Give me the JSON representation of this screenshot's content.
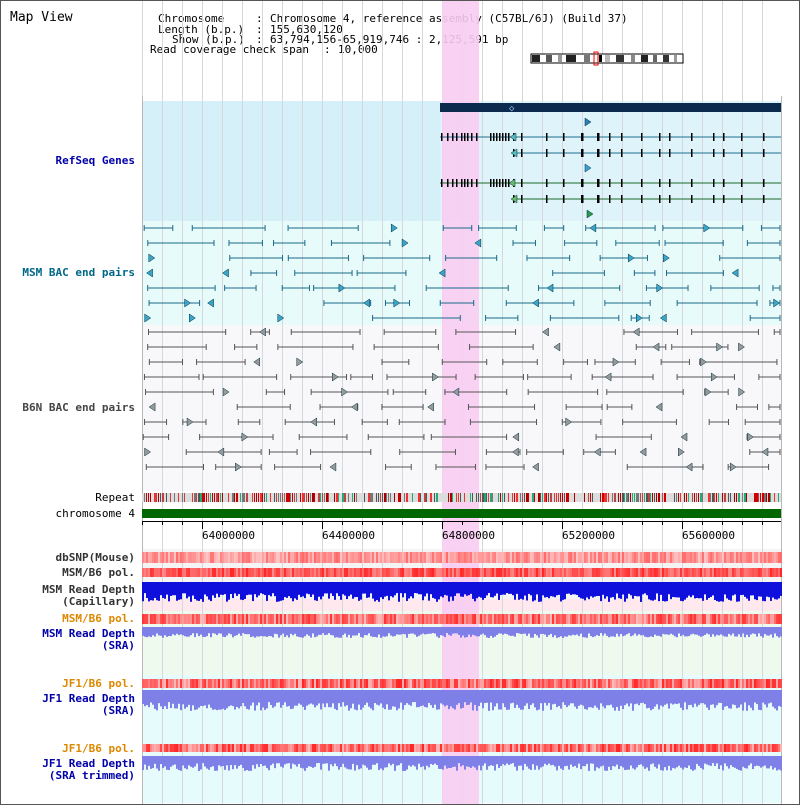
{
  "view_title": "Map View",
  "header": {
    "chromosome_key": "Chromosome",
    "chromosome_value": "Chromosome 4, reference assembly (C57BL/6J) (Build 37)",
    "length_key": "Length (b.p.)",
    "length_value": "155,630,120",
    "show_key": "Show (b.p.)",
    "show_value": "63,794,156-65,919,746 : 2,125,591 bp",
    "coverage_key": "Read coverage check span",
    "coverage_value": "10,000",
    "separator": ":"
  },
  "tracks": {
    "refseq": "RefSeq Genes",
    "msm_bac": "MSM BAC end pairs",
    "b6n_bac": "B6N BAC end pairs",
    "repeat": "Repeat",
    "chromosome": "chromosome 4",
    "dbsnp": "dbSNP(Mouse)",
    "msm_b6_pol": "MSM/B6 pol.",
    "msm_depth_cap": "MSM Read Depth\n(Capillary)",
    "msm_b6_pol_2": "MSM/B6 pol.",
    "msm_depth_sra": "MSM Read Depth\n(SRA)",
    "jf1_b6_pol": "JF1/B6 pol.",
    "jf1_depth_sra": "JF1 Read Depth\n(SRA)",
    "jf1_b6_pol_2": "JF1/B6 pol.",
    "jf1_depth_trim": "JF1 Read Depth\n(SRA trimmed)"
  },
  "ruler": {
    "ticks": [
      "64000000",
      "64400000",
      "64800000",
      "65200000",
      "65600000"
    ]
  },
  "colors": {
    "label_blue": "#0000aa",
    "label_teal": "#006688",
    "label_gray": "#444444",
    "label_orange": "#dd8800",
    "highlight": "#f8cdf2",
    "refseq_bg": "#d6f0fa",
    "bac_bg": "#e8fbfb",
    "chrom_green": "#006600"
  }
}
